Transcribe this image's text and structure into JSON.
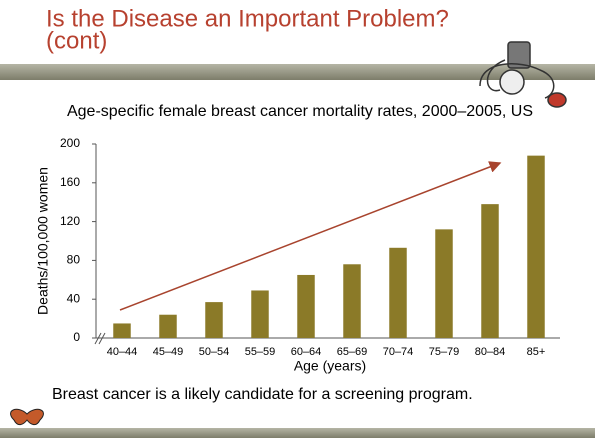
{
  "slide": {
    "title_lines": [
      "Is the Disease an Important Problem?",
      "(cont)"
    ],
    "footer": "Breast cancer is a likely candidate for a screening program."
  },
  "chart_data": {
    "type": "bar",
    "title": "Age-specific female breast cancer mortality rates, 2000–2005, US",
    "ylabel": "Deaths/100,000 women",
    "xlabel": "Age (years)",
    "categories": [
      "40–44",
      "45–49",
      "50–54",
      "55–59",
      "60–64",
      "65–69",
      "70–74",
      "75–79",
      "80–84",
      "85+"
    ],
    "values": [
      15,
      24,
      37,
      49,
      65,
      76,
      93,
      112,
      138,
      188
    ],
    "color": "#8b7a28",
    "ylim": [
      0,
      200
    ],
    "yticks": [
      0,
      40,
      80,
      120,
      160,
      200
    ],
    "grid": false
  }
}
